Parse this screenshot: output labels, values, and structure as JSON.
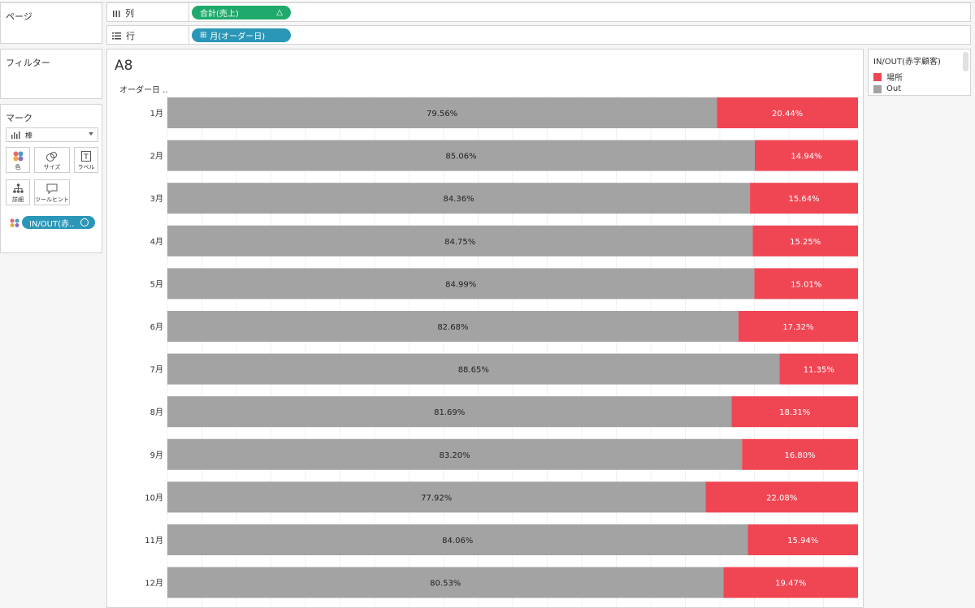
{
  "sidebar": {
    "pages_label": "ページ",
    "filters_label": "フィルター",
    "marks_label": "マーク",
    "mark_type": "棒",
    "buttons": {
      "color": "色",
      "size": "サイズ",
      "label": "ラベル",
      "detail": "詳細",
      "tooltip": "ツールヒント"
    },
    "color_pill": "IN/OUT(赤.."
  },
  "shelves": {
    "columns_label": "列",
    "rows_label": "行",
    "columns_pill": "合計(売上)",
    "columns_pill_icon": "△",
    "rows_pill": "月(オーダー日)",
    "rows_pill_icon": "⊞"
  },
  "view": {
    "title": "A8",
    "row_header": "オーダー日 .."
  },
  "legend": {
    "title": "IN/OUT(赤字顧客)",
    "items": [
      {
        "label": "場所",
        "color": "#f04654"
      },
      {
        "label": "Out",
        "color": "#a3a3a3"
      }
    ]
  },
  "chart_data": {
    "type": "bar",
    "orientation": "horizontal",
    "stacked": "percent",
    "categories": [
      "1月",
      "2月",
      "3月",
      "4月",
      "5月",
      "6月",
      "7月",
      "8月",
      "9月",
      "10月",
      "11月",
      "12月"
    ],
    "series": [
      {
        "name": "Out",
        "color": "#a3a3a3",
        "values": [
          79.56,
          85.06,
          84.36,
          84.75,
          84.99,
          82.68,
          88.65,
          81.69,
          83.2,
          77.92,
          84.06,
          80.53
        ]
      },
      {
        "name": "場所",
        "color": "#f04654",
        "values": [
          20.44,
          14.94,
          15.64,
          15.25,
          15.01,
          17.32,
          11.35,
          18.31,
          16.8,
          22.08,
          15.94,
          19.47
        ]
      }
    ],
    "xlim": [
      0,
      100
    ],
    "grid": true
  }
}
